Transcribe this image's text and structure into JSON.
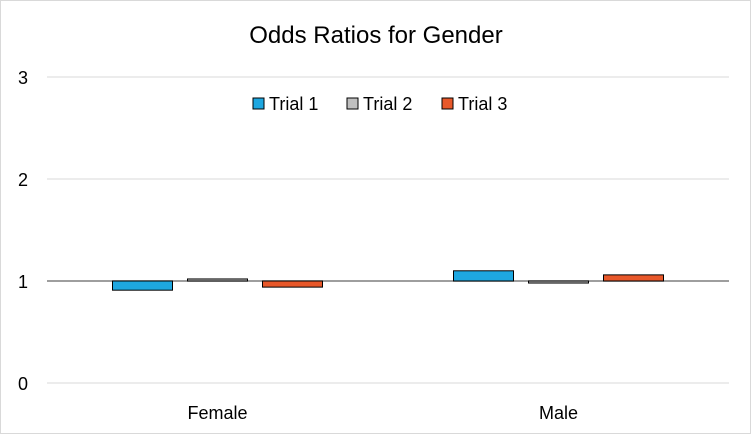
{
  "chart_data": {
    "type": "bar",
    "title": "Odds Ratios for Gender",
    "xlabel": "",
    "ylabel": "",
    "categories": [
      "Female",
      "Male"
    ],
    "series": [
      {
        "name": "Trial 1",
        "values": [
          0.91,
          1.1
        ],
        "color": "#1ea7e0"
      },
      {
        "name": "Trial 2",
        "values": [
          1.02,
          0.98
        ],
        "color": "#bfbfbf"
      },
      {
        "name": "Trial 3",
        "values": [
          0.94,
          1.06
        ],
        "color": "#e8582a"
      }
    ],
    "baseline": 1,
    "ylim": [
      0,
      3
    ],
    "yticks": [
      "0",
      "1",
      "2",
      "3"
    ],
    "grid": true,
    "legend_position": "top-center"
  }
}
